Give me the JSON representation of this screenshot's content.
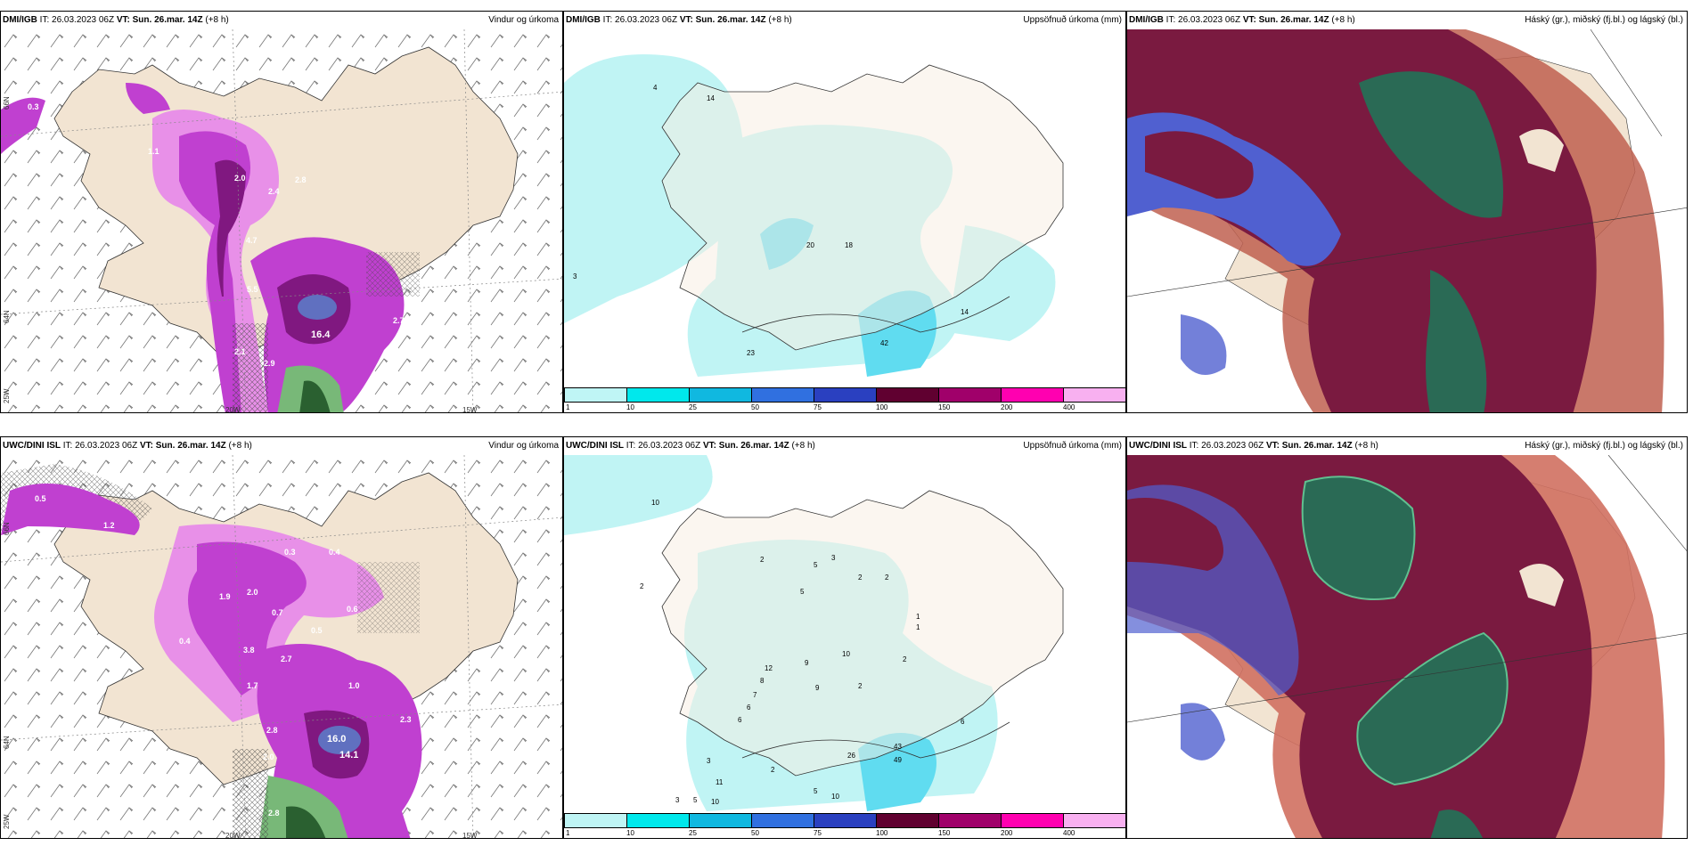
{
  "panels": {
    "p1": {
      "model": "DMI/IGB",
      "it_label": "IT:",
      "it_value": "26.03.2023 06Z",
      "vt_label": "VT:",
      "vt_value": "Sun. 26.mar. 14Z",
      "lead": "(+8 h)",
      "title": "Vindur og úrkoma",
      "lon_labels": [
        "20W",
        "15W"
      ],
      "lat_labels": [
        "66N",
        "64N",
        "25W"
      ],
      "values": [
        "0.3",
        "1.1",
        "2.0",
        "2.8",
        "2.4",
        "4.7",
        "5.5",
        "16.4",
        "2.9",
        "2.1",
        "2.7"
      ]
    },
    "p2": {
      "model": "DMI/IGB",
      "it_label": "IT:",
      "it_value": "26.03.2023 06Z",
      "vt_label": "VT:",
      "vt_value": "Sun. 26.mar. 14Z",
      "lead": "(+8 h)",
      "title": "Uppsöfnuð úrkoma (mm)",
      "values": [
        "4",
        "14",
        "20",
        "18",
        "3",
        "23",
        "42",
        "14"
      ]
    },
    "p3": {
      "model": "DMI/IGB",
      "it_label": "IT:",
      "it_value": "26.03.2023 06Z",
      "vt_label": "VT:",
      "vt_value": "Sun. 26.mar. 14Z",
      "lead": "(+8 h)",
      "title": "Háský (gr.), miðský (fj.bl.) og lágský (bl.)"
    },
    "p4": {
      "model": "UWC/DINI ISL",
      "it_label": "IT:",
      "it_value": "26.03.2023 06Z",
      "vt_label": "VT:",
      "vt_value": "Sun. 26.mar. 14Z",
      "lead": "(+8 h)",
      "title": "Vindur og úrkoma",
      "lon_labels": [
        "20W",
        "15W"
      ],
      "lat_labels": [
        "66N",
        "64N",
        "25W"
      ],
      "values": [
        "0.5",
        "1.2",
        "1.9",
        "2.0",
        "0.3",
        "0.4",
        "0.7",
        "0.5",
        "0.6",
        "3.8",
        "2.7",
        "1.7",
        "2.8",
        "2.0",
        "16.0",
        "14.1",
        "2.3",
        "0.4",
        "1.0",
        "2.8"
      ]
    },
    "p5": {
      "model": "UWC/DINI ISL",
      "it_label": "IT:",
      "it_value": "26.03.2023 06Z",
      "vt_label": "VT:",
      "vt_value": "Sun. 26.mar. 14Z",
      "lead": "(+8 h)",
      "title": "Uppsöfnuð úrkoma (mm)",
      "values": [
        "10",
        "2",
        "2",
        "5",
        "3",
        "2",
        "2",
        "5",
        "1",
        "1",
        "12",
        "8",
        "7",
        "6",
        "9",
        "10",
        "2",
        "2",
        "9",
        "6",
        "11",
        "3",
        "2",
        "5",
        "10",
        "43",
        "49",
        "26",
        "3",
        "5",
        "10",
        "6"
      ]
    },
    "p6": {
      "model": "UWC/DINI ISL",
      "it_label": "IT:",
      "it_value": "26.03.2023 06Z",
      "vt_label": "VT:",
      "vt_value": "Sun. 26.mar. 14Z",
      "lead": "(+8 h)",
      "title": "Háský (gr.), miðský (fj.bl.) og lágský (bl.)"
    }
  },
  "colorbar": {
    "labels": [
      "1",
      "10",
      "25",
      "50",
      "75",
      "100",
      "150",
      "200",
      "400"
    ],
    "colors": [
      "#bff5f5",
      "#00e8ec",
      "#10b8e0",
      "#3070e0",
      "#2a40c0",
      "#600030",
      "#a0006a",
      "#ff00b0",
      "#f8b0f0"
    ]
  },
  "colors": {
    "land": "#f2e4d2",
    "precip_light": "#e890e8",
    "precip_mid": "#c040d0",
    "precip_dark": "#801880",
    "accum_light": "#c0f4f4",
    "accum_mid": "#60dcf0",
    "cloud_dark": "#7a1a40",
    "cloud_green": "#2a6a55",
    "cloud_blue": "#5060d0",
    "cloud_red": "#c06050"
  }
}
